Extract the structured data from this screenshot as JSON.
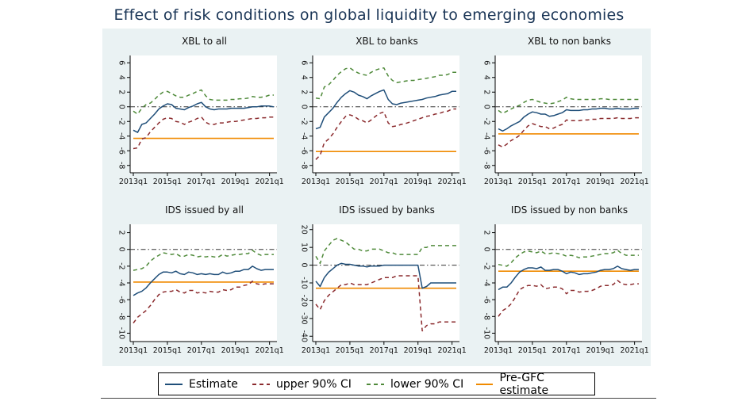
{
  "title": "Effect of risk conditions on global liquidity to emerging economies",
  "colors": {
    "estimate": "#1f4e79",
    "upper": "#8b2b2e",
    "lower": "#4f8a3a",
    "pregfc": "#f08a00",
    "panel_bg": "#eaf2f3",
    "plot_bg": "#ffffff"
  },
  "legend": {
    "estimate": "Estimate",
    "upper": "upper 90% CI",
    "lower": "lower 90% CI",
    "pregfc": "Pre-GFC estimate"
  },
  "chart_data": [
    {
      "type": "line",
      "title": "XBL to all",
      "x_ticks": [
        "2013q1",
        "2015q1",
        "2017q1",
        "2019q1",
        "2021q1"
      ],
      "y_ticks": [
        6,
        4,
        2,
        0,
        -2,
        -4,
        -6,
        -8
      ],
      "ylim": [
        -9,
        7
      ],
      "x": [
        "2013q1",
        "2013q2",
        "2013q3",
        "2013q4",
        "2014q1",
        "2014q2",
        "2014q3",
        "2014q4",
        "2015q1",
        "2015q2",
        "2015q3",
        "2015q4",
        "2016q1",
        "2016q2",
        "2016q3",
        "2016q4",
        "2017q1",
        "2017q2",
        "2017q3",
        "2017q4",
        "2018q1",
        "2018q2",
        "2018q3",
        "2018q4",
        "2019q1",
        "2019q2",
        "2019q3",
        "2019q4",
        "2020q1",
        "2020q2",
        "2020q3",
        "2020q4",
        "2021q1",
        "2021q2"
      ],
      "series": [
        {
          "name": "Estimate",
          "values": [
            -3.2,
            -3.5,
            -2.4,
            -2.2,
            -1.6,
            -1.0,
            -0.3,
            0.1,
            0.4,
            0.3,
            -0.2,
            -0.3,
            -0.4,
            -0.1,
            0.1,
            0.4,
            0.6,
            0.0,
            -0.3,
            -0.4,
            -0.3,
            -0.3,
            -0.3,
            -0.2,
            -0.2,
            -0.2,
            -0.2,
            -0.1,
            0.0,
            0.0,
            0.1,
            0.1,
            0.1,
            0.0
          ]
        },
        {
          "name": "upper 90% CI",
          "values": [
            -5.7,
            -5.6,
            -4.4,
            -4.2,
            -3.4,
            -2.8,
            -2.2,
            -1.7,
            -1.5,
            -1.6,
            -2.0,
            -2.1,
            -2.4,
            -2.1,
            -1.9,
            -1.6,
            -1.4,
            -2.1,
            -2.4,
            -2.4,
            -2.2,
            -2.2,
            -2.1,
            -2.0,
            -2.0,
            -1.9,
            -1.8,
            -1.7,
            -1.6,
            -1.6,
            -1.5,
            -1.5,
            -1.4,
            -1.4
          ]
        },
        {
          "name": "lower 90% CI",
          "values": [
            -0.6,
            -1.0,
            -0.2,
            0.3,
            0.5,
            1.0,
            1.6,
            2.0,
            2.1,
            1.8,
            1.5,
            1.3,
            1.3,
            1.6,
            1.8,
            2.1,
            2.3,
            1.5,
            1.0,
            0.9,
            0.9,
            0.9,
            0.9,
            1.0,
            1.0,
            1.1,
            1.1,
            1.2,
            1.4,
            1.3,
            1.3,
            1.4,
            1.6,
            1.6
          ]
        }
      ],
      "pre_gfc_estimate": -4.3
    },
    {
      "type": "line",
      "title": "XBL to banks",
      "x_ticks": [
        "2013q1",
        "2015q1",
        "2017q1",
        "2019q1",
        "2021q1"
      ],
      "y_ticks": [
        6,
        4,
        2,
        0,
        -2,
        -4,
        -6,
        -8
      ],
      "ylim": [
        -9,
        7
      ],
      "x": [
        "2013q1",
        "2013q2",
        "2013q3",
        "2013q4",
        "2014q1",
        "2014q2",
        "2014q3",
        "2014q4",
        "2015q1",
        "2015q2",
        "2015q3",
        "2015q4",
        "2016q1",
        "2016q2",
        "2016q3",
        "2016q4",
        "2017q1",
        "2017q2",
        "2017q3",
        "2017q4",
        "2018q1",
        "2018q2",
        "2018q3",
        "2018q4",
        "2019q1",
        "2019q2",
        "2019q3",
        "2019q4",
        "2020q1",
        "2020q2",
        "2020q3",
        "2020q4",
        "2021q1",
        "2021q2"
      ],
      "series": [
        {
          "name": "Estimate",
          "values": [
            -3.0,
            -2.8,
            -1.4,
            -0.8,
            -0.2,
            0.6,
            1.3,
            1.8,
            2.2,
            2.0,
            1.6,
            1.4,
            1.1,
            1.5,
            1.8,
            2.1,
            2.3,
            1.0,
            0.4,
            0.3,
            0.5,
            0.6,
            0.7,
            0.8,
            0.9,
            1.0,
            1.2,
            1.3,
            1.4,
            1.6,
            1.7,
            1.8,
            2.1,
            2.1
          ]
        },
        {
          "name": "upper 90% CI",
          "values": [
            -7.2,
            -6.6,
            -4.9,
            -4.4,
            -3.7,
            -2.8,
            -2.0,
            -1.3,
            -1.1,
            -1.3,
            -1.7,
            -1.9,
            -2.2,
            -1.8,
            -1.3,
            -0.9,
            -0.7,
            -2.2,
            -2.7,
            -2.6,
            -2.4,
            -2.3,
            -2.1,
            -1.9,
            -1.7,
            -1.5,
            -1.3,
            -1.2,
            -1.0,
            -0.9,
            -0.7,
            -0.6,
            -0.3,
            -0.3
          ]
        },
        {
          "name": "lower 90% CI",
          "values": [
            1.2,
            1.1,
            2.7,
            3.0,
            3.6,
            4.3,
            4.8,
            5.2,
            5.3,
            4.9,
            4.6,
            4.4,
            4.3,
            4.7,
            5.0,
            5.2,
            5.3,
            4.2,
            3.6,
            3.3,
            3.4,
            3.5,
            3.6,
            3.6,
            3.7,
            3.8,
            3.9,
            4.0,
            4.1,
            4.3,
            4.3,
            4.4,
            4.7,
            4.7
          ]
        }
      ],
      "pre_gfc_estimate": -6.1
    },
    {
      "type": "line",
      "title": "XBL to non banks",
      "x_ticks": [
        "2013q1",
        "2015q1",
        "2017q1",
        "2019q1",
        "2021q1"
      ],
      "y_ticks": [
        6,
        4,
        2,
        0,
        -2,
        -4,
        -6,
        -8
      ],
      "ylim": [
        -9,
        7
      ],
      "x": [
        "2013q1",
        "2013q2",
        "2013q3",
        "2013q4",
        "2014q1",
        "2014q2",
        "2014q3",
        "2014q4",
        "2015q1",
        "2015q2",
        "2015q3",
        "2015q4",
        "2016q1",
        "2016q2",
        "2016q3",
        "2016q4",
        "2017q1",
        "2017q2",
        "2017q3",
        "2017q4",
        "2018q1",
        "2018q2",
        "2018q3",
        "2018q4",
        "2019q1",
        "2019q2",
        "2019q3",
        "2019q4",
        "2020q1",
        "2020q2",
        "2020q3",
        "2020q4",
        "2021q1",
        "2021q2"
      ],
      "series": [
        {
          "name": "Estimate",
          "values": [
            -3.0,
            -3.3,
            -3.0,
            -2.6,
            -2.3,
            -2.0,
            -1.4,
            -1.0,
            -0.7,
            -0.8,
            -1.0,
            -1.0,
            -1.3,
            -1.2,
            -1.0,
            -0.8,
            -0.4,
            -0.5,
            -0.5,
            -0.5,
            -0.4,
            -0.4,
            -0.3,
            -0.3,
            -0.2,
            -0.2,
            -0.3,
            -0.3,
            -0.2,
            -0.3,
            -0.3,
            -0.3,
            -0.2,
            -0.2
          ]
        },
        {
          "name": "upper 90% CI",
          "values": [
            -5.2,
            -5.5,
            -5.1,
            -4.6,
            -4.3,
            -3.9,
            -3.2,
            -2.6,
            -2.3,
            -2.5,
            -2.7,
            -2.7,
            -3.0,
            -2.9,
            -2.6,
            -2.4,
            -1.8,
            -1.9,
            -1.9,
            -1.9,
            -1.8,
            -1.8,
            -1.7,
            -1.7,
            -1.6,
            -1.6,
            -1.6,
            -1.6,
            -1.5,
            -1.6,
            -1.6,
            -1.6,
            -1.5,
            -1.5
          ]
        },
        {
          "name": "lower 90% CI",
          "values": [
            -0.5,
            -0.9,
            -0.6,
            -0.3,
            0.0,
            0.2,
            0.6,
            0.9,
            1.0,
            0.8,
            0.6,
            0.5,
            0.4,
            0.5,
            0.7,
            0.9,
            1.3,
            1.1,
            1.0,
            1.0,
            1.0,
            1.0,
            1.0,
            1.0,
            1.1,
            1.1,
            1.0,
            1.0,
            1.0,
            1.0,
            1.0,
            1.0,
            1.0,
            1.0
          ]
        }
      ],
      "pre_gfc_estimate": -3.7
    },
    {
      "type": "line",
      "title": "IDS issued by all",
      "x_ticks": [
        "2013q1",
        "2015q1",
        "2017q1",
        "2019q1",
        "2021q1"
      ],
      "y_ticks": [
        2,
        0,
        -2,
        -4,
        -6,
        -8,
        -10
      ],
      "ylim": [
        -11,
        3
      ],
      "x": [
        "2013q1",
        "2013q2",
        "2013q3",
        "2013q4",
        "2014q1",
        "2014q2",
        "2014q3",
        "2014q4",
        "2015q1",
        "2015q2",
        "2015q3",
        "2015q4",
        "2016q1",
        "2016q2",
        "2016q3",
        "2016q4",
        "2017q1",
        "2017q2",
        "2017q3",
        "2017q4",
        "2018q1",
        "2018q2",
        "2018q3",
        "2018q4",
        "2019q1",
        "2019q2",
        "2019q3",
        "2019q4",
        "2020q1",
        "2020q2",
        "2020q3",
        "2020q4",
        "2021q1",
        "2021q2"
      ],
      "series": [
        {
          "name": "Estimate",
          "values": [
            -5.5,
            -5.2,
            -5.0,
            -4.6,
            -4.0,
            -3.5,
            -3.0,
            -2.7,
            -2.7,
            -2.8,
            -2.6,
            -2.9,
            -3.0,
            -2.7,
            -2.8,
            -3.0,
            -2.9,
            -3.0,
            -2.9,
            -3.0,
            -3.0,
            -2.7,
            -2.9,
            -2.8,
            -2.6,
            -2.6,
            -2.4,
            -2.4,
            -2.0,
            -2.3,
            -2.5,
            -2.4,
            -2.4,
            -2.4
          ]
        },
        {
          "name": "upper 90% CI",
          "values": [
            -8.8,
            -8.1,
            -7.7,
            -7.3,
            -6.7,
            -6.0,
            -5.4,
            -5.1,
            -5.0,
            -5.0,
            -4.8,
            -5.1,
            -5.2,
            -4.9,
            -4.9,
            -5.2,
            -5.1,
            -5.2,
            -5.0,
            -5.1,
            -5.1,
            -4.8,
            -4.9,
            -4.8,
            -4.5,
            -4.5,
            -4.3,
            -4.2,
            -3.8,
            -4.1,
            -4.2,
            -4.1,
            -4.1,
            -4.1
          ]
        },
        {
          "name": "lower 90% CI",
          "values": [
            -2.5,
            -2.4,
            -2.3,
            -2.0,
            -1.4,
            -1.0,
            -0.7,
            -0.4,
            -0.5,
            -0.6,
            -0.5,
            -0.8,
            -0.8,
            -0.6,
            -0.7,
            -0.9,
            -0.8,
            -0.9,
            -0.8,
            -0.9,
            -0.9,
            -0.6,
            -0.8,
            -0.7,
            -0.6,
            -0.6,
            -0.5,
            -0.5,
            -0.1,
            -0.5,
            -0.7,
            -0.6,
            -0.6,
            -0.6
          ]
        }
      ],
      "pre_gfc_estimate": -3.9
    },
    {
      "type": "line",
      "title": "IDS issued by banks",
      "x_ticks": [
        "2013q1",
        "2015q1",
        "2017q1",
        "2019q1",
        "2021q1"
      ],
      "y_ticks": [
        20,
        10,
        0,
        -10,
        -20,
        -30,
        -40
      ],
      "ylim": [
        -43,
        23
      ],
      "x": [
        "2013q1",
        "2013q2",
        "2013q3",
        "2013q4",
        "2014q1",
        "2014q2",
        "2014q3",
        "2014q4",
        "2015q1",
        "2015q2",
        "2015q3",
        "2015q4",
        "2016q1",
        "2016q2",
        "2016q3",
        "2016q4",
        "2017q1",
        "2017q2",
        "2017q3",
        "2017q4",
        "2018q1",
        "2018q2",
        "2018q3",
        "2018q4",
        "2019q1",
        "2019q2",
        "2019q3",
        "2019q4",
        "2020q1",
        "2020q2",
        "2020q3",
        "2020q4",
        "2021q1",
        "2021q2"
      ],
      "series": [
        {
          "name": "Estimate",
          "values": [
            -9,
            -12,
            -7,
            -4,
            -2,
            0,
            1,
            0.5,
            0.5,
            0,
            -0.5,
            -0.5,
            -1,
            -0.5,
            -0.5,
            -0.5,
            0,
            0,
            0,
            0,
            0,
            0,
            0,
            0,
            0,
            -13,
            -12,
            -10,
            -10,
            -10,
            -10,
            -10,
            -10,
            -10
          ]
        },
        {
          "name": "upper 90% CI",
          "values": [
            -22,
            -25,
            -20,
            -17,
            -15,
            -13,
            -11,
            -11,
            -10,
            -11,
            -11,
            -11,
            -11,
            -10,
            -9,
            -8,
            -7,
            -7,
            -7,
            -6,
            -6,
            -6,
            -6,
            -6,
            -6,
            -37,
            -34,
            -33,
            -33,
            -32,
            -32,
            -32,
            -32,
            -32
          ]
        },
        {
          "name": "lower 90% CI",
          "values": [
            5,
            1,
            8,
            11,
            14,
            15,
            14,
            13,
            11,
            9,
            9,
            8,
            8,
            9,
            9,
            9,
            8,
            7,
            7,
            6,
            6,
            6,
            6,
            6,
            6,
            10,
            10,
            11,
            11,
            11,
            11,
            11,
            11,
            11
          ]
        }
      ],
      "pre_gfc_estimate": -13
    },
    {
      "type": "line",
      "title": "IDS issued by non banks",
      "x_ticks": [
        "2013q1",
        "2015q1",
        "2017q1",
        "2019q1",
        "2021q1"
      ],
      "y_ticks": [
        2,
        0,
        -2,
        -4,
        -6,
        -8,
        -10
      ],
      "ylim": [
        -11,
        3
      ],
      "x": [
        "2013q1",
        "2013q2",
        "2013q3",
        "2013q4",
        "2014q1",
        "2014q2",
        "2014q3",
        "2014q4",
        "2015q1",
        "2015q2",
        "2015q3",
        "2015q4",
        "2016q1",
        "2016q2",
        "2016q3",
        "2016q4",
        "2017q1",
        "2017q2",
        "2017q3",
        "2017q4",
        "2018q1",
        "2018q2",
        "2018q3",
        "2018q4",
        "2019q1",
        "2019q2",
        "2019q3",
        "2019q4",
        "2020q1",
        "2020q2",
        "2020q3",
        "2020q4",
        "2021q1",
        "2021q2"
      ],
      "series": [
        {
          "name": "Estimate",
          "values": [
            -4.8,
            -4.5,
            -4.5,
            -4.0,
            -3.3,
            -2.7,
            -2.4,
            -2.2,
            -2.2,
            -2.3,
            -2.1,
            -2.5,
            -2.5,
            -2.4,
            -2.4,
            -2.6,
            -2.9,
            -2.7,
            -2.8,
            -3.0,
            -2.9,
            -2.9,
            -2.8,
            -2.7,
            -2.5,
            -2.4,
            -2.4,
            -2.3,
            -2.0,
            -2.3,
            -2.4,
            -2.5,
            -2.4,
            -2.4
          ]
        },
        {
          "name": "upper 90% CI",
          "values": [
            -8.0,
            -7.3,
            -7.0,
            -6.5,
            -5.7,
            -4.8,
            -4.5,
            -4.3,
            -4.3,
            -4.4,
            -4.2,
            -4.7,
            -4.6,
            -4.5,
            -4.5,
            -4.7,
            -5.3,
            -4.9,
            -4.9,
            -5.1,
            -5.0,
            -5.0,
            -4.9,
            -4.7,
            -4.4,
            -4.3,
            -4.3,
            -4.2,
            -3.7,
            -4.1,
            -4.2,
            -4.2,
            -4.1,
            -4.1
          ]
        },
        {
          "name": "lower 90% CI",
          "values": [
            -1.8,
            -1.9,
            -2.0,
            -1.6,
            -1.0,
            -0.6,
            -0.3,
            -0.2,
            -0.3,
            -0.4,
            -0.2,
            -0.5,
            -0.5,
            -0.4,
            -0.5,
            -0.6,
            -0.8,
            -0.7,
            -0.8,
            -1.0,
            -0.9,
            -0.9,
            -0.8,
            -0.7,
            -0.6,
            -0.5,
            -0.5,
            -0.4,
            -0.1,
            -0.5,
            -0.7,
            -0.7,
            -0.7,
            -0.7
          ]
        }
      ],
      "pre_gfc_estimate": -2.6
    }
  ]
}
